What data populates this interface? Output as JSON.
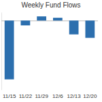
{
  "chart_data": {
    "type": "bar",
    "title": "Weekly Fund Flows",
    "categories": [
      "11/15",
      "11/22",
      "11/29",
      "12/6",
      "12/13",
      "12/20"
    ],
    "values": [
      -8.5,
      -0.7,
      0.6,
      0.4,
      -2.0,
      -2.5
    ],
    "color": "#2c6fae",
    "ylim": [
      -10,
      1.2
    ],
    "yticks": [
      0
    ],
    "tick_labels": "x",
    "grid": false
  }
}
